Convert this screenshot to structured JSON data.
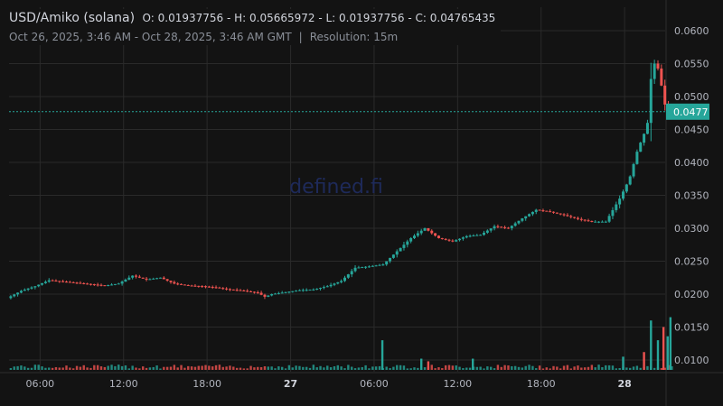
{
  "header": {
    "title": "USD/Amiko (solana)",
    "ohlc": "O: 0.01937756 - H: 0.05665972 - L: 0.01937756 - C: 0.04765435",
    "range": "Oct 26, 2025, 3:46 AM - Oct 28, 2025, 3:46 AM GMT",
    "separator": "|",
    "resolution": "Resolution: 15m"
  },
  "watermark": "defined.fi",
  "colors": {
    "up": "#26a69a",
    "down": "#ef5350",
    "grid": "#2a2a2a",
    "axis": "#b2b5be",
    "last_price": "#26a69a"
  },
  "chart_data": {
    "type": "candlestick",
    "y_ticks": [
      "0.0600",
      "0.0550",
      "0.0500",
      "0.0450",
      "0.0400",
      "0.0350",
      "0.0300",
      "0.0250",
      "0.0200",
      "0.0150",
      "0.0100"
    ],
    "ylim": [
      0.0085,
      0.063
    ],
    "x_ticks": [
      {
        "label": "06:00",
        "h": 2.23,
        "bold": false
      },
      {
        "label": "12:00",
        "h": 8.23,
        "bold": false
      },
      {
        "label": "18:00",
        "h": 14.23,
        "bold": false
      },
      {
        "label": "27",
        "h": 20.23,
        "bold": true
      },
      {
        "label": "06:00",
        "h": 26.23,
        "bold": false
      },
      {
        "label": "12:00",
        "h": 32.23,
        "bold": false
      },
      {
        "label": "18:00",
        "h": 38.23,
        "bold": false
      },
      {
        "label": "28",
        "h": 44.23,
        "bold": true
      }
    ],
    "last_price_label": "0.0477",
    "last_price": 0.0477,
    "price_path": [
      [
        0,
        0.0194
      ],
      [
        1,
        0.0205
      ],
      [
        2,
        0.0212
      ],
      [
        3,
        0.0221
      ],
      [
        4,
        0.0219
      ],
      [
        5,
        0.0217
      ],
      [
        6,
        0.0215
      ],
      [
        7,
        0.0213
      ],
      [
        8,
        0.0216
      ],
      [
        9,
        0.0228
      ],
      [
        10,
        0.0222
      ],
      [
        11,
        0.0225
      ],
      [
        12,
        0.0216
      ],
      [
        13,
        0.0213
      ],
      [
        14,
        0.0212
      ],
      [
        15,
        0.021
      ],
      [
        16,
        0.0207
      ],
      [
        17,
        0.0205
      ],
      [
        18,
        0.0202
      ],
      [
        18.5,
        0.0196
      ],
      [
        19,
        0.02
      ],
      [
        20,
        0.0203
      ],
      [
        21,
        0.0206
      ],
      [
        22,
        0.0207
      ],
      [
        23,
        0.0212
      ],
      [
        24,
        0.022
      ],
      [
        25,
        0.024
      ],
      [
        26,
        0.0242
      ],
      [
        27,
        0.0245
      ],
      [
        28,
        0.0265
      ],
      [
        29,
        0.0285
      ],
      [
        30,
        0.03
      ],
      [
        31,
        0.0285
      ],
      [
        32,
        0.028
      ],
      [
        33,
        0.0288
      ],
      [
        34,
        0.029
      ],
      [
        35,
        0.0303
      ],
      [
        36,
        0.03
      ],
      [
        37,
        0.0315
      ],
      [
        38,
        0.0328
      ],
      [
        39,
        0.0325
      ],
      [
        40,
        0.032
      ],
      [
        41,
        0.0314
      ],
      [
        42,
        0.031
      ],
      [
        43,
        0.031
      ],
      [
        44,
        0.0345
      ],
      [
        44.7,
        0.0375
      ],
      [
        45.3,
        0.042
      ],
      [
        45.7,
        0.044
      ],
      [
        46.0,
        0.046
      ],
      [
        46.3,
        0.054
      ],
      [
        46.6,
        0.0555
      ],
      [
        46.9,
        0.053
      ],
      [
        47.2,
        0.049
      ],
      [
        47.5,
        0.0477
      ]
    ],
    "volume_spikes": [
      [
        26.7,
        0.013
      ],
      [
        29.5,
        0.0102
      ],
      [
        30.0,
        0.0098
      ],
      [
        33.2,
        0.0102
      ],
      [
        44.0,
        0.0105
      ],
      [
        45.5,
        0.0112
      ],
      [
        46.0,
        0.016
      ],
      [
        46.5,
        0.013
      ],
      [
        46.9,
        0.015
      ],
      [
        47.2,
        0.0136
      ],
      [
        47.4,
        0.0165
      ]
    ]
  }
}
